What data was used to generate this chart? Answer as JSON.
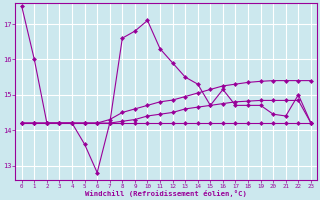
{
  "xlabel": "Windchill (Refroidissement éolien,°C)",
  "background_color": "#cce8ee",
  "grid_color": "#ffffff",
  "line_color": "#990099",
  "x": [
    0,
    1,
    2,
    3,
    4,
    5,
    6,
    7,
    8,
    9,
    10,
    11,
    12,
    13,
    14,
    15,
    16,
    17,
    18,
    19,
    20,
    21,
    22,
    23
  ],
  "series1": [
    17.5,
    16.0,
    14.2,
    14.2,
    14.2,
    13.6,
    12.8,
    14.2,
    16.6,
    16.8,
    17.1,
    16.3,
    15.9,
    15.5,
    15.3,
    14.7,
    15.15,
    14.7,
    14.7,
    14.7,
    14.45,
    14.4,
    15.0,
    14.2
  ],
  "series2": [
    14.2,
    14.2,
    14.2,
    14.2,
    14.2,
    14.2,
    14.2,
    14.2,
    14.2,
    14.2,
    14.2,
    14.2,
    14.2,
    14.2,
    14.2,
    14.2,
    14.2,
    14.2,
    14.2,
    14.2,
    14.2,
    14.2,
    14.2,
    14.2
  ],
  "series3": [
    14.2,
    14.2,
    14.2,
    14.2,
    14.2,
    14.2,
    14.2,
    14.3,
    14.5,
    14.6,
    14.7,
    14.8,
    14.85,
    14.95,
    15.05,
    15.15,
    15.25,
    15.3,
    15.35,
    15.38,
    15.4,
    15.4,
    15.4,
    15.4
  ],
  "series4": [
    14.2,
    14.2,
    14.2,
    14.2,
    14.2,
    14.2,
    14.2,
    14.2,
    14.25,
    14.3,
    14.4,
    14.45,
    14.5,
    14.6,
    14.65,
    14.7,
    14.75,
    14.8,
    14.82,
    14.84,
    14.84,
    14.84,
    14.84,
    14.2
  ],
  "ylim": [
    12.6,
    17.6
  ],
  "yticks": [
    13,
    14,
    15,
    16,
    17
  ],
  "xlim": [
    -0.5,
    23.5
  ],
  "xticks": [
    0,
    1,
    2,
    3,
    4,
    5,
    6,
    7,
    8,
    9,
    10,
    11,
    12,
    13,
    14,
    15,
    16,
    17,
    18,
    19,
    20,
    21,
    22,
    23
  ],
  "marker": "D",
  "markersize": 2.5,
  "linewidth": 0.8
}
